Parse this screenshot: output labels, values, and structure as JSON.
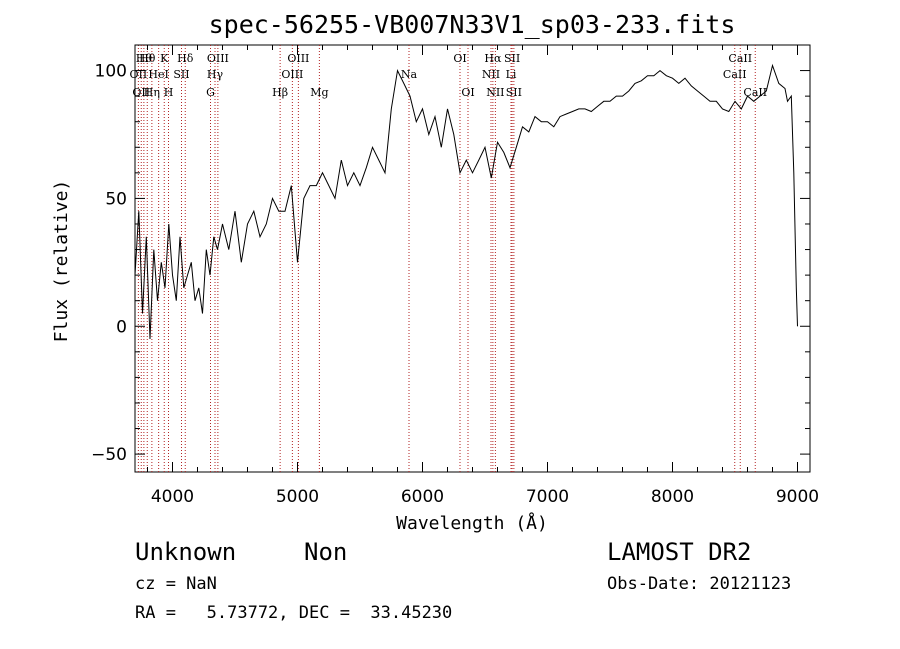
{
  "chart_data": {
    "type": "line",
    "title": "spec-56255-VB007N33V1_sp03-233.fits",
    "xlabel": "Wavelength (Å)",
    "ylabel": "Flux (relative)",
    "xlim": [
      3700,
      9100
    ],
    "ylim": [
      -57,
      110
    ],
    "xticks": [
      4000,
      5000,
      6000,
      7000,
      8000,
      9000
    ],
    "yticks": [
      -50,
      0,
      50,
      100
    ],
    "grid": false,
    "line_color": "#000000",
    "marker_color": "#b22222",
    "series": [
      {
        "x": [
          3700,
          3730,
          3760,
          3790,
          3820,
          3850,
          3880,
          3910,
          3940,
          3970,
          4000,
          4030,
          4060,
          4090,
          4120,
          4150,
          4180,
          4210,
          4240,
          4270,
          4300,
          4330,
          4360,
          4400,
          4450,
          4500,
          4550,
          4600,
          4650,
          4700,
          4750,
          4800,
          4850,
          4900,
          4950,
          5000,
          5050,
          5100,
          5150,
          5200,
          5250,
          5300,
          5350,
          5400,
          5450,
          5500,
          5550,
          5600,
          5650,
          5700,
          5750,
          5800,
          5850,
          5900,
          5950,
          6000,
          6050,
          6100,
          6150,
          6200,
          6250,
          6300,
          6350,
          6400,
          6450,
          6500,
          6550,
          6600,
          6650,
          6700,
          6750,
          6800,
          6850,
          6900,
          6950,
          7000,
          7050,
          7100,
          7150,
          7200,
          7250,
          7300,
          7350,
          7400,
          7450,
          7500,
          7550,
          7600,
          7650,
          7700,
          7750,
          7800,
          7850,
          7900,
          7950,
          8000,
          8050,
          8100,
          8150,
          8200,
          8250,
          8300,
          8350,
          8400,
          8450,
          8500,
          8550,
          8600,
          8650,
          8700,
          8750,
          8800,
          8850,
          8900,
          8920,
          8950,
          8970,
          8990,
          9000
        ],
        "y": [
          20,
          45,
          5,
          35,
          -5,
          30,
          10,
          25,
          15,
          40,
          20,
          10,
          35,
          15,
          20,
          25,
          10,
          15,
          5,
          30,
          20,
          35,
          30,
          40,
          30,
          45,
          25,
          40,
          45,
          35,
          40,
          50,
          45,
          45,
          55,
          25,
          50,
          55,
          55,
          60,
          55,
          50,
          65,
          55,
          60,
          55,
          62,
          70,
          65,
          60,
          85,
          100,
          95,
          90,
          80,
          85,
          75,
          82,
          70,
          85,
          75,
          60,
          65,
          60,
          65,
          70,
          58,
          72,
          68,
          62,
          70,
          78,
          76,
          82,
          80,
          80,
          78,
          82,
          83,
          84,
          85,
          85,
          84,
          86,
          88,
          88,
          90,
          90,
          92,
          95,
          96,
          98,
          98,
          100,
          98,
          97,
          95,
          97,
          94,
          92,
          90,
          88,
          88,
          85,
          84,
          88,
          85,
          90,
          88,
          90,
          92,
          102,
          95,
          93,
          88,
          90,
          60,
          15,
          0
        ]
      }
    ],
    "lines": [
      {
        "wl": 3727,
        "row": 2,
        "text": "OII"
      },
      {
        "wl": 3750,
        "row": 3,
        "text": "OII"
      },
      {
        "wl": 3771,
        "row": 1,
        "text": "Hθ"
      },
      {
        "wl": 3798,
        "row": 1,
        "text": "Hθ"
      },
      {
        "wl": 3835,
        "row": 3,
        "text": "Hη"
      },
      {
        "wl": 3889,
        "row": 2,
        "text": "HeI"
      },
      {
        "wl": 3934,
        "row": 1,
        "text": "K"
      },
      {
        "wl": 3968,
        "row": 3,
        "text": "H"
      },
      {
        "wl": 4072,
        "row": 2,
        "text": "SII"
      },
      {
        "wl": 4102,
        "row": 1,
        "text": "Hδ"
      },
      {
        "wl": 4304,
        "row": 3,
        "text": "G"
      },
      {
        "wl": 4340,
        "row": 2,
        "text": "Hγ"
      },
      {
        "wl": 4363,
        "row": 1,
        "text": "OIII"
      },
      {
        "wl": 4861,
        "row": 3,
        "text": "Hβ"
      },
      {
        "wl": 4959,
        "row": 2,
        "text": "OIII"
      },
      {
        "wl": 5007,
        "row": 1,
        "text": "OIII"
      },
      {
        "wl": 5175,
        "row": 3,
        "text": "Mg"
      },
      {
        "wl": 5892,
        "row": 2,
        "text": "Na"
      },
      {
        "wl": 6300,
        "row": 1,
        "text": "OI"
      },
      {
        "wl": 6364,
        "row": 3,
        "text": "OI"
      },
      {
        "wl": 6548,
        "row": 2,
        "text": "NII"
      },
      {
        "wl": 6563,
        "row": 1,
        "text": "Hα"
      },
      {
        "wl": 6583,
        "row": 3,
        "text": "NII"
      },
      {
        "wl": 6708,
        "row": 2,
        "text": "Li"
      },
      {
        "wl": 6717,
        "row": 1,
        "text": "SII"
      },
      {
        "wl": 6731,
        "row": 3,
        "text": "SII"
      },
      {
        "wl": 8498,
        "row": 2,
        "text": "CaII"
      },
      {
        "wl": 8542,
        "row": 1,
        "text": "CaII"
      },
      {
        "wl": 8662,
        "row": 3,
        "text": "CaII"
      }
    ]
  },
  "info": {
    "class": "Unknown",
    "subclass": "Non",
    "survey": "LAMOST DR2",
    "cz": "cz = NaN",
    "obs_date": "Obs-Date: 20121123",
    "coords": "RA =   5.73772, DEC =  33.45230"
  }
}
